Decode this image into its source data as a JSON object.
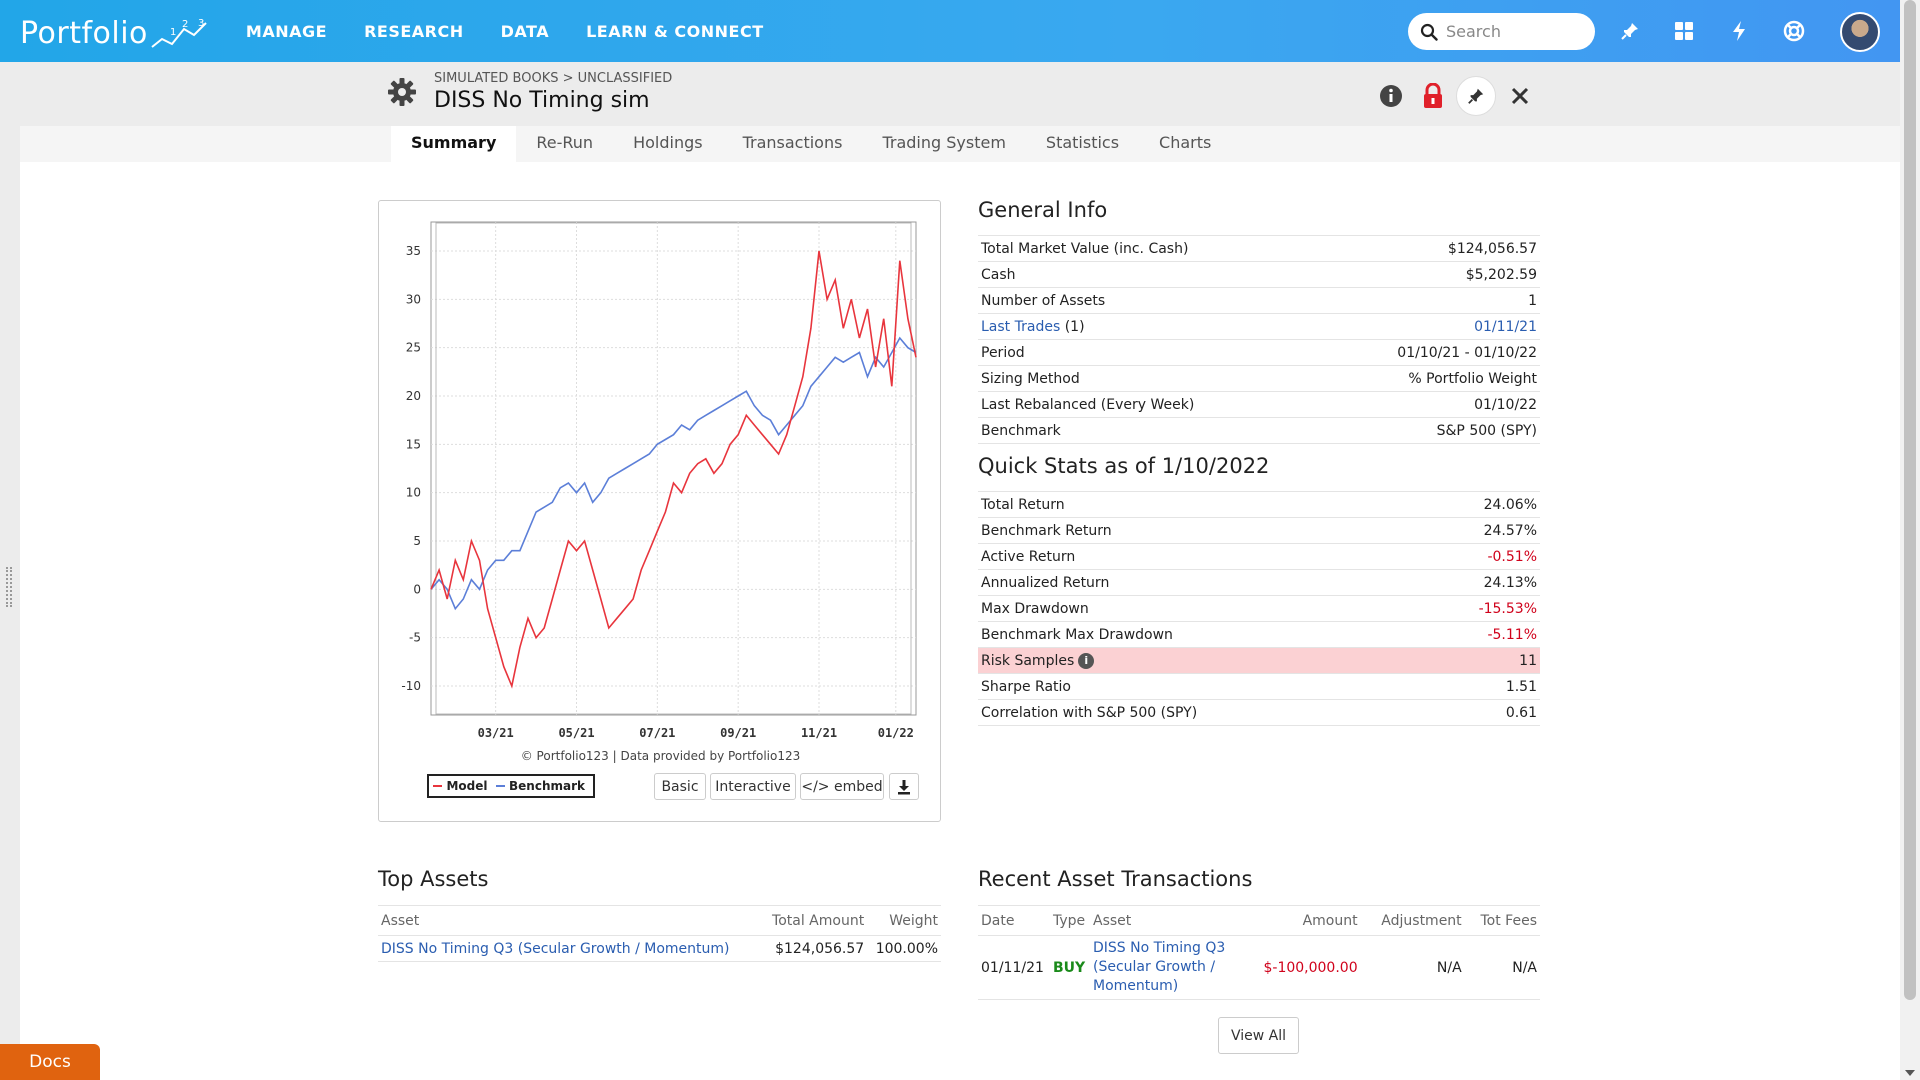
{
  "brand": {
    "logo_text": "Portfolio",
    "logo_sup": "1,2,3"
  },
  "nav": {
    "items": [
      "MANAGE",
      "RESEARCH",
      "DATA",
      "LEARN & CONNECT"
    ]
  },
  "search": {
    "placeholder": "Search"
  },
  "header": {
    "breadcrumb": "SIMULATED BOOKS > UNCLASSIFIED",
    "title": "DISS No Timing sim"
  },
  "tabs": [
    "Summary",
    "Re-Run",
    "Holdings",
    "Transactions",
    "Trading System",
    "Statistics",
    "Charts"
  ],
  "chart_data": {
    "type": "line",
    "title": "",
    "xlabel": "",
    "ylabel": "",
    "ylim": [
      -13,
      38
    ],
    "y_ticks": [
      35,
      30,
      25,
      20,
      15,
      10,
      5,
      0,
      -5,
      -10
    ],
    "x_tick_labels": [
      "03/21",
      "05/21",
      "07/21",
      "09/21",
      "11/21",
      "01/22"
    ],
    "x_range_months": [
      0,
      12
    ],
    "x_ticks_months": [
      1.6,
      3.6,
      5.6,
      7.6,
      9.6,
      11.5
    ],
    "grid": true,
    "legend": "bottom-left",
    "credit": "© Portfolio123 | Data provided by Portfolio123",
    "series": [
      {
        "name": "Model",
        "color": "#e8353d",
        "points": [
          [
            0,
            0
          ],
          [
            0.2,
            2
          ],
          [
            0.4,
            -1
          ],
          [
            0.6,
            3
          ],
          [
            0.8,
            1
          ],
          [
            1.0,
            5
          ],
          [
            1.2,
            3
          ],
          [
            1.4,
            -2
          ],
          [
            1.6,
            -5
          ],
          [
            1.8,
            -8
          ],
          [
            2.0,
            -10
          ],
          [
            2.2,
            -6
          ],
          [
            2.4,
            -3
          ],
          [
            2.6,
            -5
          ],
          [
            2.8,
            -4
          ],
          [
            3.0,
            -1
          ],
          [
            3.2,
            2
          ],
          [
            3.4,
            5
          ],
          [
            3.6,
            4
          ],
          [
            3.8,
            5
          ],
          [
            4.0,
            2
          ],
          [
            4.2,
            -1
          ],
          [
            4.4,
            -4
          ],
          [
            4.6,
            -3
          ],
          [
            4.8,
            -2
          ],
          [
            5.0,
            -1
          ],
          [
            5.2,
            2
          ],
          [
            5.4,
            4
          ],
          [
            5.6,
            6
          ],
          [
            5.8,
            8
          ],
          [
            6.0,
            11
          ],
          [
            6.2,
            10
          ],
          [
            6.4,
            12
          ],
          [
            6.6,
            13
          ],
          [
            6.8,
            13.5
          ],
          [
            7.0,
            12
          ],
          [
            7.2,
            13
          ],
          [
            7.4,
            15
          ],
          [
            7.6,
            16
          ],
          [
            7.8,
            18
          ],
          [
            8.0,
            17
          ],
          [
            8.2,
            16
          ],
          [
            8.4,
            15
          ],
          [
            8.6,
            14
          ],
          [
            8.8,
            16
          ],
          [
            9.0,
            19
          ],
          [
            9.2,
            22
          ],
          [
            9.4,
            27
          ],
          [
            9.6,
            35
          ],
          [
            9.8,
            30
          ],
          [
            10.0,
            32
          ],
          [
            10.2,
            27
          ],
          [
            10.4,
            30
          ],
          [
            10.6,
            26
          ],
          [
            10.8,
            29
          ],
          [
            11.0,
            23
          ],
          [
            11.2,
            28
          ],
          [
            11.4,
            21
          ],
          [
            11.6,
            34
          ],
          [
            11.8,
            28
          ],
          [
            12.0,
            24
          ]
        ]
      },
      {
        "name": "Benchmark",
        "color": "#5c7fd8",
        "points": [
          [
            0,
            0
          ],
          [
            0.2,
            1
          ],
          [
            0.4,
            0
          ],
          [
            0.6,
            -2
          ],
          [
            0.8,
            -1
          ],
          [
            1.0,
            1
          ],
          [
            1.2,
            0
          ],
          [
            1.4,
            2
          ],
          [
            1.6,
            3
          ],
          [
            1.8,
            3
          ],
          [
            2.0,
            4
          ],
          [
            2.2,
            4
          ],
          [
            2.4,
            6
          ],
          [
            2.6,
            8
          ],
          [
            2.8,
            8.5
          ],
          [
            3.0,
            9
          ],
          [
            3.2,
            10.5
          ],
          [
            3.4,
            11
          ],
          [
            3.6,
            10
          ],
          [
            3.8,
            11
          ],
          [
            4.0,
            9
          ],
          [
            4.2,
            10
          ],
          [
            4.4,
            11.5
          ],
          [
            4.6,
            12
          ],
          [
            4.8,
            12.5
          ],
          [
            5.0,
            13
          ],
          [
            5.2,
            13.5
          ],
          [
            5.4,
            14
          ],
          [
            5.6,
            15
          ],
          [
            5.8,
            15.5
          ],
          [
            6.0,
            16
          ],
          [
            6.2,
            17
          ],
          [
            6.4,
            16.5
          ],
          [
            6.6,
            17.5
          ],
          [
            6.8,
            18
          ],
          [
            7.0,
            18.5
          ],
          [
            7.2,
            19
          ],
          [
            7.4,
            19.5
          ],
          [
            7.6,
            20
          ],
          [
            7.8,
            20.5
          ],
          [
            8.0,
            19
          ],
          [
            8.2,
            18
          ],
          [
            8.4,
            17.5
          ],
          [
            8.6,
            16
          ],
          [
            8.8,
            17
          ],
          [
            9.0,
            18
          ],
          [
            9.2,
            19
          ],
          [
            9.4,
            21
          ],
          [
            9.6,
            22
          ],
          [
            9.8,
            23
          ],
          [
            10.0,
            24
          ],
          [
            10.2,
            23.5
          ],
          [
            10.4,
            24
          ],
          [
            10.6,
            24.5
          ],
          [
            10.8,
            22
          ],
          [
            11.0,
            24
          ],
          [
            11.2,
            23
          ],
          [
            11.4,
            24.5
          ],
          [
            11.6,
            26
          ],
          [
            11.8,
            25
          ],
          [
            12.0,
            24.5
          ]
        ]
      }
    ]
  },
  "chart_buttons": {
    "basic": "Basic",
    "interactive": "Interactive",
    "embed": "</> embed"
  },
  "general_info": {
    "title": "General Info",
    "rows": [
      {
        "label": "Total Market Value (inc. Cash)",
        "value": "$124,056.57"
      },
      {
        "label": "Cash",
        "value": "$5,202.59"
      },
      {
        "label": "Number of Assets",
        "value": "1"
      },
      {
        "label_link": "Last Trades",
        "label_suffix": " (1)",
        "value": "01/11/21"
      },
      {
        "label": "Period",
        "value": "01/10/21 - 01/10/22"
      },
      {
        "label": "Sizing Method",
        "value": "% Portfolio Weight"
      },
      {
        "label": "Last Rebalanced (Every Week)",
        "value": "01/10/22"
      },
      {
        "label": "Benchmark",
        "value": "S&P 500 (SPY)"
      }
    ]
  },
  "quick_stats": {
    "title": "Quick Stats as of 1/10/2022",
    "rows": [
      {
        "label": "Total Return",
        "value": "24.06%"
      },
      {
        "label": "Benchmark Return",
        "value": "24.57%"
      },
      {
        "label": "Active Return",
        "value": "-0.51%"
      },
      {
        "label": "Annualized Return",
        "value": "24.13%"
      },
      {
        "label": "Max Drawdown",
        "value": "-15.53%"
      },
      {
        "label": "Benchmark Max Drawdown",
        "value": "-5.11%"
      },
      {
        "label": "Risk Samples",
        "value": "11",
        "info": "i"
      },
      {
        "label": "Sharpe Ratio",
        "value": "1.51"
      },
      {
        "label": "Correlation with S&P 500 (SPY)",
        "value": "0.61"
      }
    ]
  },
  "top_assets": {
    "title": "Top Assets",
    "headers": [
      "Asset",
      "Total Amount",
      "Weight"
    ],
    "rows": [
      {
        "asset": "DISS No Timing Q3 (Secular Growth / Momentum)",
        "amount": "$124,056.57",
        "weight": "100.00%"
      }
    ]
  },
  "recent_tx": {
    "title": "Recent Asset Transactions",
    "headers": [
      "Date",
      "Type",
      "Asset",
      "Amount",
      "Adjustment",
      "Tot Fees"
    ],
    "rows": [
      {
        "date": "01/11/21",
        "type": "BUY",
        "asset_l1": "DISS No Timing Q3",
        "asset_l2": "(Secular Growth /",
        "asset_l3": "Momentum)",
        "amount": "$-100,000.00",
        "adjustment": "N/A",
        "fees": "N/A"
      }
    ],
    "view_all": "View All"
  },
  "docs": "Docs",
  "colors": {
    "nav_from": "#22a6e8",
    "nav_to": "#4296f2",
    "model": "#e8353d",
    "benchmark": "#5c7fd8",
    "link": "#2a5db0",
    "negative": "#d0021b",
    "docs": "#e0630f",
    "highlight": "#fbd1d3"
  }
}
